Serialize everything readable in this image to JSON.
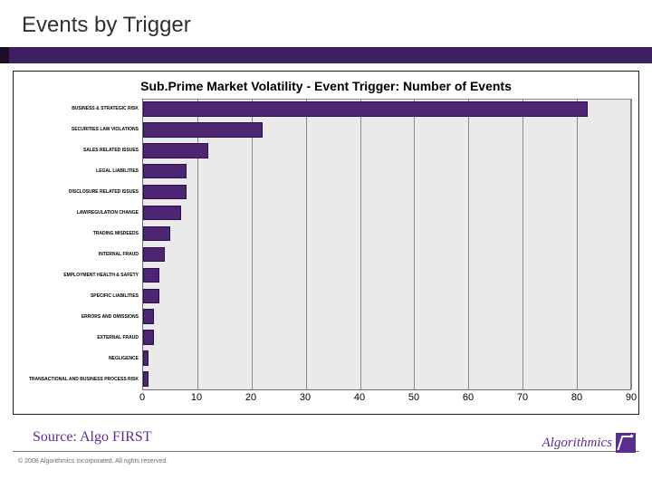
{
  "header": {
    "title": "Events by Trigger",
    "bar_color_left": "#1b0f24",
    "bar_color_right": "#3f1f63"
  },
  "chart": {
    "type": "bar-horizontal",
    "title": "Sub.Prime Market Volatility - Event Trigger: Number of Events",
    "title_fontsize": 14,
    "label_fontsize": 5,
    "tick_fontsize": 11,
    "background_color": "#eaeaea",
    "grid_color": "#888888",
    "bar_fill": "#4d2673",
    "bar_border": "#2f0e4d",
    "xlim": [
      0,
      90
    ],
    "xtick_step": 10,
    "xticks": [
      0,
      10,
      20,
      30,
      40,
      50,
      60,
      70,
      80,
      90
    ],
    "categories": [
      "BUSINESS & STRATEGIC RISK",
      "SECURITIES LAW VIOLATIONS",
      "SALES RELATED ISSUES",
      "LEGAL LIABILITIES",
      "DISCLOSURE RELATED ISSUES",
      "LAW/REGULATION CHANGE",
      "TRADING MISDEEDS",
      "INTERNAL FRAUD",
      "EMPLOYMENT HEALTH & SAFETY",
      "SPECIFIC LIABILITIES",
      "ERRORS AND OMISSIONS",
      "EXTERNAL FRAUD",
      "NEGLIGENCE",
      "TRANSACTIONAL AND BUSINESS PROCESS RISK"
    ],
    "values": [
      82,
      22,
      12,
      8,
      8,
      7,
      5,
      4,
      3,
      3,
      2,
      2,
      1,
      1
    ]
  },
  "footer": {
    "source": "Source: Algo FIRST",
    "copyright": "© 2008 Algorithmics Incorporated. All rights reserved.",
    "logo_text": "Algorithmics",
    "brand_color": "#5c2d91"
  }
}
